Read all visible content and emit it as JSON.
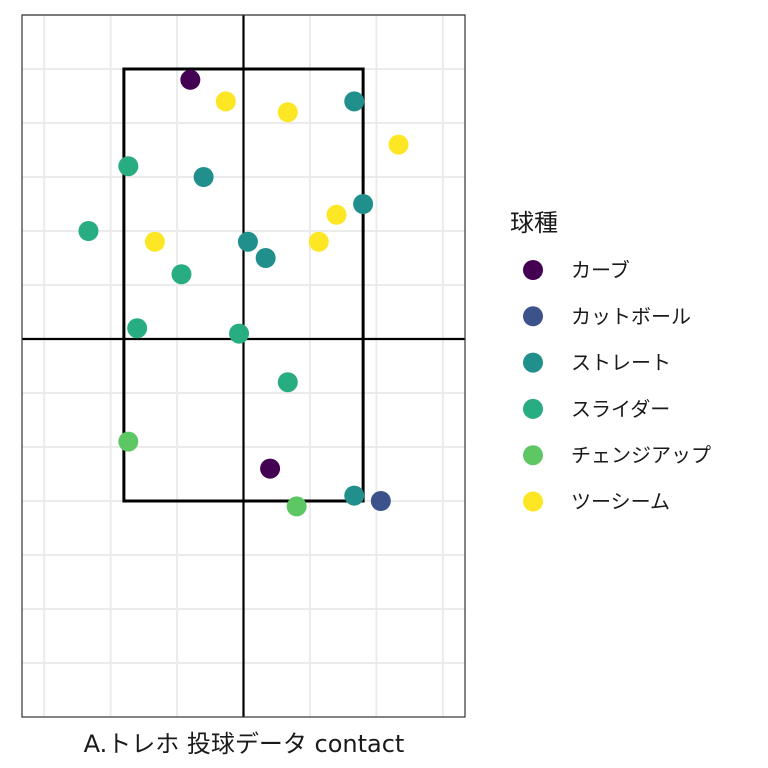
{
  "chart_data": {
    "type": "scatter",
    "title": "",
    "xlabel": "A.トレホ 投球データ contact",
    "ylabel": "",
    "xlim": [
      -5.0,
      5.0
    ],
    "ylim": [
      -5.0,
      8.0
    ],
    "grid": true,
    "legend_position": "right",
    "legend_title": "球種",
    "strike_zone": {
      "x": [
        -2.7,
        2.7
      ],
      "y": [
        -1.0,
        7.0
      ]
    },
    "series": [
      {
        "name": "カーブ",
        "color": "#440154",
        "points": [
          {
            "x": -1.2,
            "y": 6.8
          },
          {
            "x": 0.6,
            "y": -0.4
          }
        ]
      },
      {
        "name": "カットボール",
        "color": "#3b528b",
        "points": [
          {
            "x": 3.1,
            "y": -1.0
          }
        ]
      },
      {
        "name": "ストレート",
        "color": "#21908c",
        "points": [
          {
            "x": 2.5,
            "y": 6.4
          },
          {
            "x": -0.9,
            "y": 5.0
          },
          {
            "x": 2.7,
            "y": 4.5
          },
          {
            "x": 0.1,
            "y": 3.8
          },
          {
            "x": 0.5,
            "y": 3.5
          },
          {
            "x": 2.5,
            "y": -0.9
          }
        ]
      },
      {
        "name": "スライダー",
        "color": "#27ad81",
        "points": [
          {
            "x": -2.6,
            "y": 5.2
          },
          {
            "x": -3.5,
            "y": 4.0
          },
          {
            "x": -1.4,
            "y": 3.2
          },
          {
            "x": -2.4,
            "y": 2.2
          },
          {
            "x": -0.1,
            "y": 2.1
          },
          {
            "x": 1.0,
            "y": 1.2
          }
        ]
      },
      {
        "name": "チェンジアップ",
        "color": "#5dc863",
        "points": [
          {
            "x": -2.6,
            "y": 0.1
          },
          {
            "x": 1.2,
            "y": -1.1
          }
        ]
      },
      {
        "name": "ツーシーム",
        "color": "#fde725",
        "points": [
          {
            "x": -0.4,
            "y": 6.4
          },
          {
            "x": 1.0,
            "y": 6.2
          },
          {
            "x": 3.5,
            "y": 5.6
          },
          {
            "x": 2.1,
            "y": 4.3
          },
          {
            "x": -2.0,
            "y": 3.8
          },
          {
            "x": 1.7,
            "y": 3.8
          }
        ]
      }
    ]
  }
}
